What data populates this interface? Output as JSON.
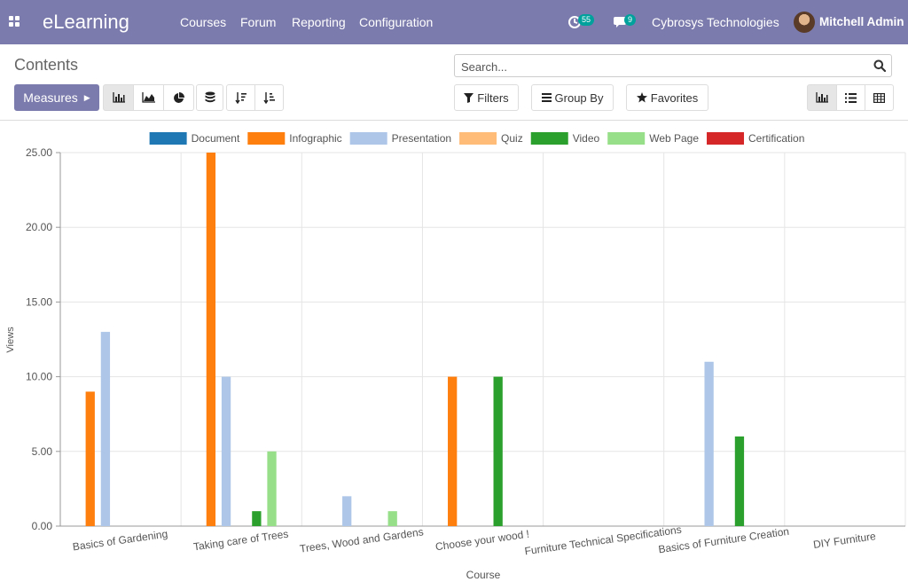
{
  "navbar": {
    "brand": "eLearning",
    "menu": [
      "Courses",
      "Forum",
      "Reporting",
      "Configuration"
    ],
    "activity_count": "55",
    "message_count": "9",
    "company": "Cybrosys Technologies",
    "user": "Mitchell Admin"
  },
  "control_panel": {
    "title": "Contents",
    "search_placeholder": "Search...",
    "measures_label": "Measures",
    "filters_label": "Filters",
    "groupby_label": "Group By",
    "favorites_label": "Favorites"
  },
  "colors": {
    "navbar": "#7c7bad",
    "primary": "#7c7bad"
  },
  "icons": {
    "apps": "apps-grid-icon",
    "search": "search-icon",
    "chart_modes": [
      "bar-chart-icon",
      "area-chart-icon",
      "pie-chart-icon",
      "stacked-icon",
      "sort-desc-icon",
      "sort-asc-icon"
    ],
    "views": [
      "graph-view-icon",
      "list-view-icon",
      "pivot-view-icon"
    ]
  },
  "chart_data": {
    "type": "bar",
    "xlabel": "Course",
    "ylabel": "Views",
    "ylim": [
      0,
      25
    ],
    "yticks": [
      "0.00",
      "5.00",
      "10.00",
      "15.00",
      "20.00",
      "25.00"
    ],
    "legend_position": "top",
    "grid": true,
    "categories": [
      "Basics of Gardening",
      "Taking care of Trees",
      "Trees, Wood and Gardens",
      "Choose your wood !",
      "Furniture Technical Specifications",
      "Basics of Furniture Creation",
      "DIY Furniture"
    ],
    "series": [
      {
        "name": "Document",
        "color": "#1f77b4",
        "values": [
          0,
          0,
          0,
          0,
          0,
          0,
          0
        ]
      },
      {
        "name": "Infographic",
        "color": "#ff7f0e",
        "values": [
          9,
          25,
          0,
          10,
          0,
          0,
          0
        ]
      },
      {
        "name": "Presentation",
        "color": "#aec7e8",
        "values": [
          13,
          10,
          2,
          0,
          0,
          11,
          0
        ]
      },
      {
        "name": "Quiz",
        "color": "#ffbb78",
        "values": [
          0,
          0,
          0,
          0,
          0,
          0,
          0
        ]
      },
      {
        "name": "Video",
        "color": "#2ca02c",
        "values": [
          0,
          1,
          0,
          10,
          0,
          6,
          0
        ]
      },
      {
        "name": "Web Page",
        "color": "#98df8a",
        "values": [
          0,
          5,
          1,
          0,
          0,
          0,
          0
        ]
      },
      {
        "name": "Certification",
        "color": "#d62728",
        "values": [
          0,
          0,
          0,
          0,
          0,
          0,
          0
        ]
      }
    ]
  }
}
